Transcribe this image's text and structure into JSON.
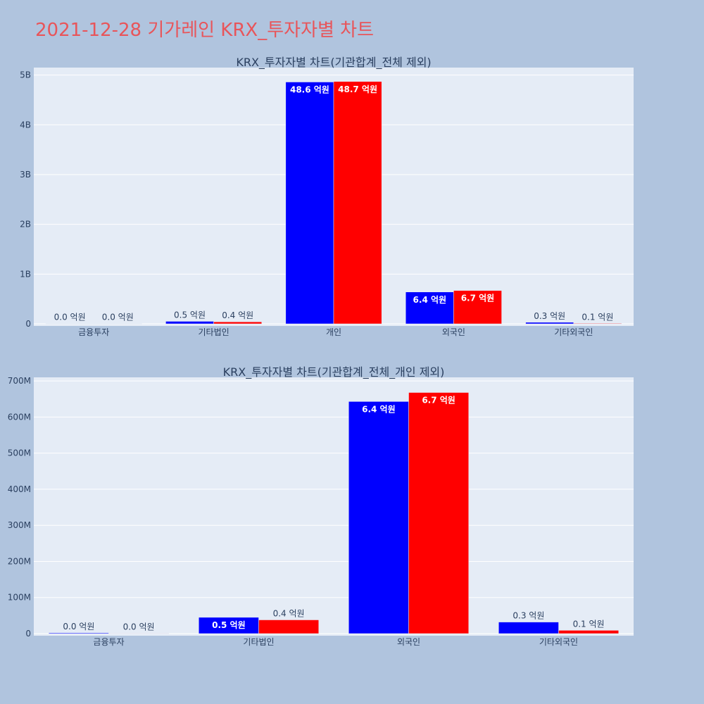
{
  "page": {
    "title": "2021-12-28 기가레인 KRX_투자자별 차트",
    "title_color": "#e8555a",
    "background": "#b0c4de"
  },
  "chart_data": [
    {
      "type": "bar",
      "title": "KRX_투자자별 차트(기관합계_전체 제외)",
      "categories": [
        "금융투자",
        "기타법인",
        "개인",
        "외국인",
        "기타외국인"
      ],
      "series": [
        {
          "color": "#0000ff",
          "values": [
            1000000,
            50000000,
            4860000000,
            640000000,
            30000000
          ],
          "labels": [
            "0.0 억원",
            "0.5 억원",
            "48.6 억원",
            "6.4 억원",
            "0.3 억원"
          ]
        },
        {
          "color": "#ff0000",
          "values": [
            1000000,
            40000000,
            4870000000,
            670000000,
            10000000
          ],
          "labels": [
            "0.0 억원",
            "0.4 억원",
            "48.7 억원",
            "6.7 억원",
            "0.1 억원"
          ]
        }
      ],
      "ylim": [
        0,
        5150000000
      ],
      "yticks": [
        0,
        1000000000,
        2000000000,
        3000000000,
        4000000000,
        5000000000
      ],
      "ytick_labels": [
        "0",
        "1B",
        "2B",
        "3B",
        "4B",
        "5B"
      ],
      "grid": true
    },
    {
      "type": "bar",
      "title": "KRX_투자자별 차트(기관합계_전체_개인 제외)",
      "categories": [
        "금융투자",
        "기타법인",
        "외국인",
        "기타외국인"
      ],
      "series": [
        {
          "color": "#0000ff",
          "values": [
            2000000,
            45000000,
            643000000,
            32000000
          ],
          "labels": [
            "0.0 억원",
            "0.5 억원",
            "6.4 억원",
            "0.3 억원"
          ]
        },
        {
          "color": "#ff0000",
          "values": [
            1000000,
            38000000,
            668000000,
            9000000
          ],
          "labels": [
            "0.0 억원",
            "0.4 억원",
            "6.7 억원",
            "0.1 억원"
          ]
        }
      ],
      "ylim": [
        0,
        710000000
      ],
      "yticks": [
        0,
        100000000,
        200000000,
        300000000,
        400000000,
        500000000,
        600000000,
        700000000
      ],
      "ytick_labels": [
        "0",
        "100M",
        "200M",
        "300M",
        "400M",
        "500M",
        "600M",
        "700M"
      ],
      "grid": true
    }
  ]
}
